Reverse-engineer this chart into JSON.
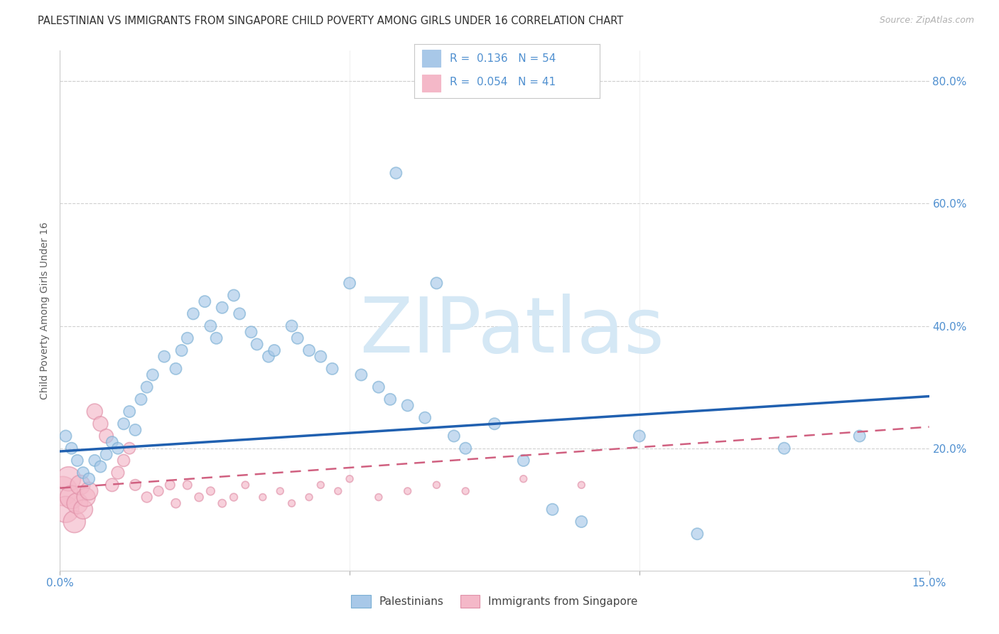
{
  "title": "PALESTINIAN VS IMMIGRANTS FROM SINGAPORE CHILD POVERTY AMONG GIRLS UNDER 16 CORRELATION CHART",
  "source": "Source: ZipAtlas.com",
  "ylabel": "Child Poverty Among Girls Under 16",
  "xlim": [
    0.0,
    0.15
  ],
  "ylim": [
    0.0,
    0.85
  ],
  "x_ticks": [
    0.0,
    0.05,
    0.1,
    0.15
  ],
  "x_tick_labels": [
    "0.0%",
    "",
    "",
    "15.0%"
  ],
  "y_ticks_right": [
    0.2,
    0.4,
    0.6,
    0.8
  ],
  "y_tick_labels_right": [
    "20.0%",
    "40.0%",
    "60.0%",
    "80.0%"
  ],
  "series1_name": "Palestinians",
  "series1_R": "0.136",
  "series1_N": "54",
  "series1_color": "#a8c8e8",
  "series1_edge_color": "#7aafd4",
  "series1_line_color": "#2060b0",
  "series2_name": "Immigrants from Singapore",
  "series2_R": "0.054",
  "series2_N": "41",
  "series2_color": "#f4b8c8",
  "series2_edge_color": "#e090a8",
  "series2_line_color": "#d06080",
  "bg_color": "#ffffff",
  "grid_color": "#d0d0d0",
  "axis_color": "#5090d0",
  "title_color": "#303030",
  "source_color": "#b0b0b0",
  "ylabel_color": "#606060",
  "watermark_color": "#d5e8f5",
  "palestinians_x": [
    0.001,
    0.002,
    0.003,
    0.004,
    0.005,
    0.006,
    0.007,
    0.008,
    0.009,
    0.01,
    0.011,
    0.012,
    0.013,
    0.014,
    0.015,
    0.016,
    0.018,
    0.02,
    0.021,
    0.022,
    0.023,
    0.025,
    0.026,
    0.027,
    0.028,
    0.03,
    0.031,
    0.033,
    0.034,
    0.036,
    0.037,
    0.04,
    0.041,
    0.043,
    0.045,
    0.047,
    0.05,
    0.052,
    0.055,
    0.057,
    0.058,
    0.06,
    0.063,
    0.065,
    0.068,
    0.07,
    0.075,
    0.08,
    0.085,
    0.09,
    0.1,
    0.11,
    0.125,
    0.138
  ],
  "palestinians_y": [
    0.22,
    0.2,
    0.18,
    0.16,
    0.15,
    0.18,
    0.17,
    0.19,
    0.21,
    0.2,
    0.24,
    0.26,
    0.23,
    0.28,
    0.3,
    0.32,
    0.35,
    0.33,
    0.36,
    0.38,
    0.42,
    0.44,
    0.4,
    0.38,
    0.43,
    0.45,
    0.42,
    0.39,
    0.37,
    0.35,
    0.36,
    0.4,
    0.38,
    0.36,
    0.35,
    0.33,
    0.47,
    0.32,
    0.3,
    0.28,
    0.65,
    0.27,
    0.25,
    0.47,
    0.22,
    0.2,
    0.24,
    0.18,
    0.1,
    0.08,
    0.22,
    0.06,
    0.2,
    0.22
  ],
  "palestinians_size": [
    55,
    55,
    55,
    55,
    55,
    55,
    55,
    55,
    55,
    55,
    55,
    55,
    55,
    55,
    55,
    55,
    55,
    55,
    55,
    55,
    55,
    55,
    55,
    55,
    55,
    55,
    55,
    55,
    55,
    55,
    55,
    55,
    55,
    55,
    55,
    55,
    55,
    55,
    55,
    55,
    55,
    55,
    55,
    55,
    55,
    55,
    55,
    55,
    55,
    55,
    55,
    55,
    55,
    55
  ],
  "singapore_x": [
    0.0005,
    0.001,
    0.0015,
    0.002,
    0.0025,
    0.003,
    0.0035,
    0.004,
    0.0045,
    0.005,
    0.006,
    0.007,
    0.008,
    0.009,
    0.01,
    0.011,
    0.012,
    0.013,
    0.015,
    0.017,
    0.019,
    0.02,
    0.022,
    0.024,
    0.026,
    0.028,
    0.03,
    0.032,
    0.035,
    0.038,
    0.04,
    0.043,
    0.045,
    0.048,
    0.05,
    0.055,
    0.06,
    0.065,
    0.07,
    0.08,
    0.09
  ],
  "singapore_y": [
    0.13,
    0.1,
    0.15,
    0.12,
    0.08,
    0.11,
    0.14,
    0.1,
    0.12,
    0.13,
    0.26,
    0.24,
    0.22,
    0.14,
    0.16,
    0.18,
    0.2,
    0.14,
    0.12,
    0.13,
    0.14,
    0.11,
    0.14,
    0.12,
    0.13,
    0.11,
    0.12,
    0.14,
    0.12,
    0.13,
    0.11,
    0.12,
    0.14,
    0.13,
    0.15,
    0.12,
    0.13,
    0.14,
    0.13,
    0.15,
    0.14
  ],
  "singapore_size": [
    350,
    280,
    240,
    220,
    200,
    180,
    160,
    150,
    140,
    130,
    100,
    90,
    80,
    70,
    65,
    60,
    55,
    50,
    45,
    40,
    38,
    35,
    32,
    30,
    28,
    26,
    24,
    22,
    20,
    20,
    20,
    20,
    20,
    20,
    20,
    20,
    20,
    20,
    20,
    20,
    20
  ],
  "pal_trend_x": [
    0.0,
    0.15
  ],
  "pal_trend_y": [
    0.195,
    0.285
  ],
  "sing_trend_x": [
    0.0,
    0.15
  ],
  "sing_trend_y": [
    0.135,
    0.235
  ]
}
